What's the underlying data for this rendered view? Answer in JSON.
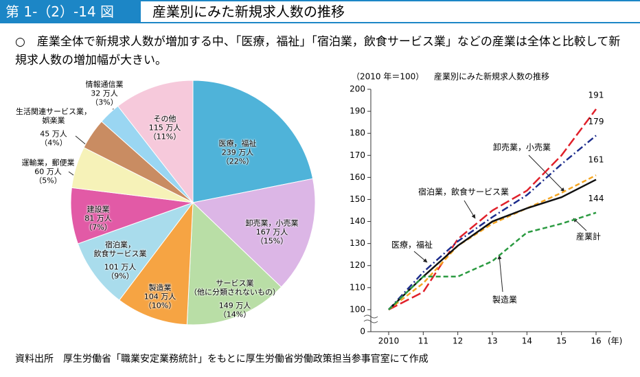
{
  "header": {
    "figure_number": "第 1-（2）-14 図",
    "title": "産業別にみた新規求人数の推移"
  },
  "summary": "○　産業全体で新規求人数が増加する中、「医療，福祉」「宿泊業，飲食サービス業」などの産業は全体と比較して新規求人数の増加幅が大きい。",
  "chart_data": [
    {
      "type": "pie",
      "categories": [
        "医療，福祉",
        "卸売業，小売業",
        "サービス業\n（他に分類されないもの）",
        "製造業",
        "宿泊業，\n飲食サービス業",
        "建設業",
        "運輸業，郵便業",
        "生活関連サービス業，\n娯楽業",
        "情報通信業",
        "その他"
      ],
      "values": [
        239,
        167,
        149,
        104,
        101,
        81,
        60,
        45,
        32,
        115
      ],
      "value_labels": [
        "239 万人",
        "167 万人",
        "149 万人",
        "104 万人",
        "101 万人",
        "81 万人",
        "60 万人",
        "45 万人",
        "32 万人",
        "115 万人"
      ],
      "percent_labels": [
        "（22%）",
        "（15%）",
        "（14%）",
        "（10%）",
        "（9%）",
        "（7%）",
        "（5%）",
        "（4%）",
        "（3%）",
        "（11%）"
      ],
      "colors": [
        "#4fb3d9",
        "#dcb6e6",
        "#b9dea6",
        "#f6a443",
        "#a9dcec",
        "#e25aa6",
        "#f6f2b8",
        "#c98c62",
        "#9ad6f2",
        "#f6c9db"
      ]
    },
    {
      "type": "line",
      "unit_note": "（2010 年＝100）",
      "title": "産業別にみた新規求人数の推移",
      "x": [
        2010,
        2011,
        2012,
        2013,
        2014,
        2015,
        2016
      ],
      "xlim": [
        2009.5,
        2016
      ],
      "xticks": [
        2010,
        {
          "value": 2011,
          "label": "11"
        },
        {
          "value": 2012,
          "label": "12"
        },
        {
          "value": 2013,
          "label": "13"
        },
        {
          "value": 2014,
          "label": "14"
        },
        {
          "value": 2015,
          "label": "15"
        },
        {
          "value": 2016,
          "label": "16"
        }
      ],
      "xlabel": "(年)",
      "ylim": [
        0,
        200
      ],
      "y_axis_break": [
        0,
        90
      ],
      "yticks": [
        0,
        100,
        110,
        120,
        130,
        140,
        150,
        160,
        170,
        180,
        190,
        200
      ],
      "end_labels": true,
      "series": [
        {
          "name": "宿泊業，飲食サービス業",
          "color": "#e0202a",
          "line_style": "longdash",
          "values": [
            100,
            108,
            132,
            145,
            154,
            170,
            191
          ]
        },
        {
          "name": "医療，福祉",
          "color": "#1c2c8c",
          "line_style": "dashdot",
          "values": [
            100,
            117,
            131,
            142,
            152,
            166,
            179
          ]
        },
        {
          "name": "卸売業，小売業",
          "color": "#f5a623",
          "line_style": "dash",
          "values": [
            100,
            112,
            129,
            139,
            146,
            153,
            161
          ]
        },
        {
          "name": "産業計",
          "color": "#111111",
          "line_style": "solid",
          "values": [
            100,
            115,
            129,
            140,
            146,
            151,
            159
          ]
        },
        {
          "name": "製造業",
          "color": "#2a9a40",
          "line_style": "dash",
          "values": [
            100,
            115,
            115,
            122,
            135,
            139,
            144
          ]
        }
      ]
    }
  ],
  "source": "資料出所　厚生労働省「職業安定業務統計」をもとに厚生労働省労働政策担当参事官室にて作成"
}
